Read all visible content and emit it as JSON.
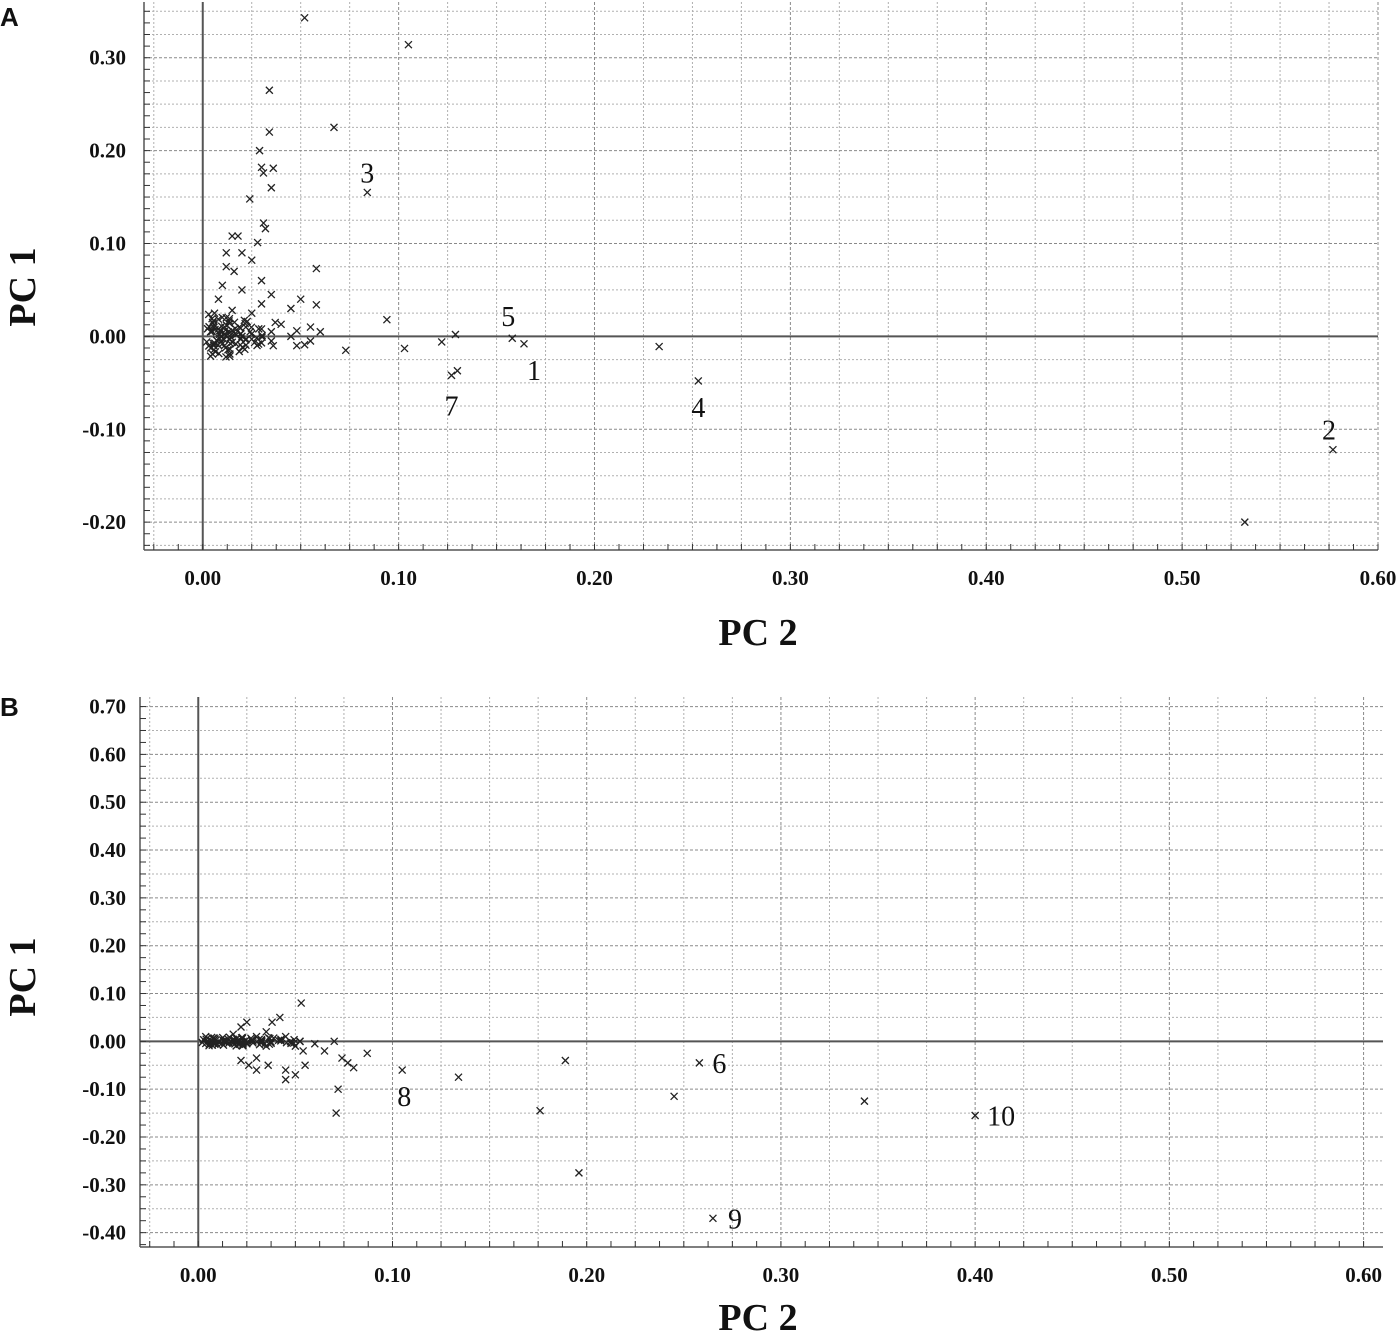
{
  "chart_data": [
    {
      "panel": "A",
      "type": "scatter",
      "xlabel": "PC 2",
      "ylabel": "PC 1",
      "xlim": [
        -0.03,
        0.6
      ],
      "ylim": [
        -0.23,
        0.36
      ],
      "xticks": [
        0.0,
        0.1,
        0.2,
        0.3,
        0.4,
        0.5,
        0.6
      ],
      "xtick_labels": [
        "0.00",
        "0.10",
        "0.20",
        "0.30",
        "0.40",
        "0.50",
        "0.60"
      ],
      "yticks": [
        -0.2,
        -0.1,
        0.0,
        0.1,
        0.2,
        0.3
      ],
      "ytick_labels": [
        "-0.20",
        "-0.10",
        "0.00",
        "0.10",
        "0.20",
        "0.30"
      ],
      "grid": true,
      "marker": "x",
      "points": [
        [
          0.052,
          0.343
        ],
        [
          0.105,
          0.314
        ],
        [
          0.034,
          0.265
        ],
        [
          0.067,
          0.225
        ],
        [
          0.034,
          0.22
        ],
        [
          0.029,
          0.2
        ],
        [
          0.03,
          0.182
        ],
        [
          0.036,
          0.181
        ],
        [
          0.031,
          0.176
        ],
        [
          0.035,
          0.16
        ],
        [
          0.084,
          0.155
        ],
        [
          0.024,
          0.148
        ],
        [
          0.031,
          0.122
        ],
        [
          0.032,
          0.116
        ],
        [
          0.015,
          0.108
        ],
        [
          0.018,
          0.108
        ],
        [
          0.028,
          0.101
        ],
        [
          0.012,
          0.09
        ],
        [
          0.02,
          0.09
        ],
        [
          0.025,
          0.082
        ],
        [
          0.012,
          0.075
        ],
        [
          0.058,
          0.073
        ],
        [
          0.016,
          0.07
        ],
        [
          0.03,
          0.06
        ],
        [
          0.01,
          0.055
        ],
        [
          0.02,
          0.05
        ],
        [
          0.035,
          0.045
        ],
        [
          0.05,
          0.04
        ],
        [
          0.008,
          0.04
        ],
        [
          0.03,
          0.035
        ],
        [
          0.058,
          0.034
        ],
        [
          0.045,
          0.03
        ],
        [
          0.015,
          0.028
        ],
        [
          0.025,
          0.025
        ],
        [
          0.006,
          0.025
        ],
        [
          0.012,
          0.02
        ],
        [
          0.094,
          0.018
        ],
        [
          0.037,
          0.015
        ],
        [
          0.04,
          0.013
        ],
        [
          0.005,
          0.015
        ],
        [
          0.055,
          0.01
        ],
        [
          0.022,
          0.01
        ],
        [
          0.03,
          0.008
        ],
        [
          0.008,
          0.008
        ],
        [
          0.048,
          0.006
        ],
        [
          0.035,
          0.005
        ],
        [
          0.06,
          0.005
        ],
        [
          0.004,
          0.005
        ],
        [
          0.015,
          0.003
        ],
        [
          0.129,
          0.002
        ],
        [
          0.02,
          0.0
        ],
        [
          0.045,
          0.0
        ],
        [
          0.158,
          -0.002
        ],
        [
          0.025,
          -0.003
        ],
        [
          0.055,
          -0.005
        ],
        [
          0.035,
          -0.005
        ],
        [
          0.122,
          -0.006
        ],
        [
          0.03,
          -0.007
        ],
        [
          0.164,
          -0.008
        ],
        [
          0.052,
          -0.009
        ],
        [
          0.048,
          -0.01
        ],
        [
          0.233,
          -0.011
        ],
        [
          0.103,
          -0.013
        ],
        [
          0.036,
          -0.01
        ],
        [
          0.073,
          -0.015
        ],
        [
          0.13,
          -0.037
        ],
        [
          0.127,
          -0.042
        ],
        [
          0.253,
          -0.048
        ],
        [
          0.577,
          -0.122
        ],
        [
          0.532,
          -0.2
        ]
      ],
      "annotations": [
        {
          "text": "3",
          "x": 0.084,
          "y": 0.155
        },
        {
          "text": "5",
          "x": 0.158,
          "y": -0.002
        },
        {
          "text": "1",
          "x": 0.164,
          "y": -0.008
        },
        {
          "text": "7",
          "x": 0.127,
          "y": -0.042
        },
        {
          "text": "4",
          "x": 0.253,
          "y": -0.048
        },
        {
          "text": "2",
          "x": 0.577,
          "y": -0.122
        }
      ]
    },
    {
      "panel": "B",
      "type": "scatter",
      "xlabel": "PC 2",
      "ylabel": "PC 1",
      "xlim": [
        -0.03,
        0.61
      ],
      "ylim": [
        -0.43,
        0.72
      ],
      "xticks": [
        0.0,
        0.1,
        0.2,
        0.3,
        0.4,
        0.5,
        0.6
      ],
      "xtick_labels": [
        "0.00",
        "0.10",
        "0.20",
        "0.30",
        "0.40",
        "0.50",
        "0.60"
      ],
      "yticks": [
        -0.4,
        -0.3,
        -0.2,
        -0.1,
        0.0,
        0.1,
        0.2,
        0.3,
        0.4,
        0.5,
        0.6,
        0.7
      ],
      "ytick_labels": [
        "-0.40",
        "-0.30",
        "-0.20",
        "-0.10",
        "0.00",
        "0.10",
        "0.20",
        "0.30",
        "0.40",
        "0.50",
        "0.60",
        "0.70"
      ],
      "grid": true,
      "marker": "x",
      "points": [
        [
          0.053,
          0.08
        ],
        [
          0.042,
          0.05
        ],
        [
          0.038,
          0.04
        ],
        [
          0.025,
          0.04
        ],
        [
          0.022,
          0.03
        ],
        [
          0.035,
          0.02
        ],
        [
          0.018,
          0.015
        ],
        [
          0.03,
          0.01
        ],
        [
          0.045,
          0.01
        ],
        [
          0.07,
          0.0
        ],
        [
          0.02,
          0.0
        ],
        [
          0.025,
          -0.005
        ],
        [
          0.06,
          -0.005
        ],
        [
          0.035,
          -0.01
        ],
        [
          0.05,
          -0.01
        ],
        [
          0.054,
          -0.02
        ],
        [
          0.065,
          -0.02
        ],
        [
          0.087,
          -0.025
        ],
        [
          0.074,
          -0.035
        ],
        [
          0.03,
          -0.035
        ],
        [
          0.022,
          -0.04
        ],
        [
          0.189,
          -0.04
        ],
        [
          0.258,
          -0.045
        ],
        [
          0.077,
          -0.045
        ],
        [
          0.026,
          -0.05
        ],
        [
          0.055,
          -0.05
        ],
        [
          0.036,
          -0.05
        ],
        [
          0.08,
          -0.055
        ],
        [
          0.105,
          -0.06
        ],
        [
          0.03,
          -0.06
        ],
        [
          0.045,
          -0.06
        ],
        [
          0.05,
          -0.07
        ],
        [
          0.045,
          -0.08
        ],
        [
          0.134,
          -0.075
        ],
        [
          0.072,
          -0.1
        ],
        [
          0.245,
          -0.115
        ],
        [
          0.343,
          -0.125
        ],
        [
          0.4,
          -0.155
        ],
        [
          0.176,
          -0.145
        ],
        [
          0.071,
          -0.15
        ],
        [
          0.196,
          -0.275
        ],
        [
          0.265,
          -0.37
        ]
      ],
      "annotations": [
        {
          "text": "6",
          "x": 0.258,
          "y": -0.045
        },
        {
          "text": "8",
          "x": 0.105,
          "y": -0.06
        },
        {
          "text": "10",
          "x": 0.4,
          "y": -0.155
        },
        {
          "text": "9",
          "x": 0.265,
          "y": -0.37
        }
      ]
    }
  ],
  "panels": [
    {
      "letter": "A"
    },
    {
      "letter": "B"
    }
  ]
}
